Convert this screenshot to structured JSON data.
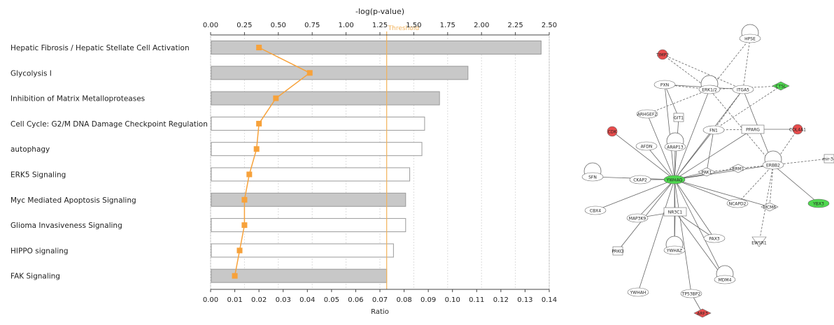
{
  "chart_data": {
    "type": "bar",
    "top_axis": {
      "label": "-log(p-value)",
      "range": [
        0,
        2.5
      ],
      "ticks": [
        "0.00",
        "0.25",
        "0.50",
        "0.75",
        "1.00",
        "1.25",
        "1.50",
        "1.75",
        "2.00",
        "2.25",
        "2.50"
      ]
    },
    "bottom_axis": {
      "label": "Ratio",
      "range": [
        0,
        0.14
      ],
      "ticks": [
        "0.00",
        "0.01",
        "0.02",
        "0.03",
        "0.04",
        "0.05",
        "0.06",
        "0.07",
        "0.08",
        "0.09",
        "0.10",
        "0.11",
        "0.12",
        "0.13",
        "0.14"
      ]
    },
    "threshold": {
      "label": "Threshold",
      "value": 1.3
    },
    "categories": [
      "Hepatic Fibrosis / Hepatic Stellate Cell Activation",
      "Glycolysis I",
      "Inhibition of Matrix Metalloproteases",
      "Cell Cycle: G2/M DNA Damage Checkpoint Regulation",
      "autophagy",
      "ERK5 Signaling",
      "Myc Mediated Apoptosis Signaling",
      "Glioma Invasiveness Signaling",
      "HIPPO signaling",
      "FAK Signaling"
    ],
    "series": [
      {
        "values": [
          2.44,
          1.9,
          1.69,
          1.58,
          1.56,
          1.47,
          1.44,
          1.44,
          1.35,
          1.3
        ],
        "fill": [
          "gray",
          "gray",
          "gray",
          "white",
          "white",
          "white",
          "gray",
          "white",
          "white",
          "gray"
        ]
      },
      {
        "values": [
          0.02,
          0.041,
          0.027,
          0.02,
          0.019,
          0.016,
          0.014,
          0.014,
          0.012,
          0.01
        ]
      }
    ],
    "grid": true,
    "colors": {
      "bar_gray": "#c8c8c8",
      "bar_outline": "#9a9a9a",
      "ratio_line": "#f7a23b",
      "threshold_line": "#f2b25a"
    }
  },
  "network": {
    "colors": {
      "up": "#e84c4c",
      "down": "#4fd84f",
      "neutral": "#ffffff"
    },
    "nodes": [
      {
        "label": "HPSE",
        "color": "neutral"
      },
      {
        "label": "TIMP2",
        "color": "up"
      },
      {
        "label": "PXN",
        "color": "neutral"
      },
      {
        "label": "ERK1/2",
        "color": "neutral"
      },
      {
        "label": "ITGA5",
        "color": "neutral"
      },
      {
        "label": "CTSL",
        "color": "down"
      },
      {
        "label": "ARHGEF2",
        "color": "neutral"
      },
      {
        "label": "GIT1",
        "color": "neutral"
      },
      {
        "label": "FN1",
        "color": "neutral"
      },
      {
        "label": "PPARG",
        "color": "neutral"
      },
      {
        "label": "COL4A1",
        "color": "up"
      },
      {
        "label": "CDK",
        "color": "up"
      },
      {
        "label": "AFDN",
        "color": "neutral"
      },
      {
        "label": "ARAP13",
        "color": "neutral"
      },
      {
        "label": "ERBB2",
        "color": "neutral"
      },
      {
        "label": "mir-34",
        "color": "neutral"
      },
      {
        "label": "SFN",
        "color": "neutral"
      },
      {
        "label": "CKAP2",
        "color": "neutral"
      },
      {
        "label": "YWHAQ",
        "color": "down"
      },
      {
        "label": "PAK1",
        "color": "neutral"
      },
      {
        "label": "RRM1",
        "color": "neutral"
      },
      {
        "label": "YBX3",
        "color": "down"
      },
      {
        "label": "CBX4",
        "color": "neutral"
      },
      {
        "label": "NR3C1",
        "color": "neutral"
      },
      {
        "label": "NCAPD2",
        "color": "neutral"
      },
      {
        "label": "MCM6",
        "color": "neutral"
      },
      {
        "label": "MAP3K9",
        "color": "neutral"
      },
      {
        "label": "PAX3",
        "color": "neutral"
      },
      {
        "label": "EWSR1",
        "color": "neutral"
      },
      {
        "label": "PRKCI",
        "color": "neutral"
      },
      {
        "label": "YWHAZ",
        "color": "neutral"
      },
      {
        "label": "MDM4",
        "color": "neutral"
      },
      {
        "label": "YWHAH",
        "color": "neutral"
      },
      {
        "label": "TP53BP2",
        "color": "neutral"
      },
      {
        "label": "ARF3",
        "color": "up"
      }
    ]
  }
}
